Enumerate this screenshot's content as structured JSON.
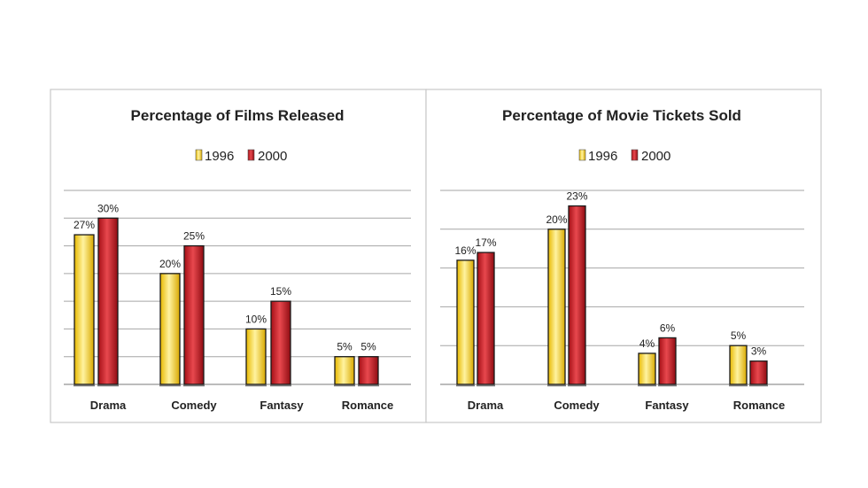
{
  "chart_data": [
    {
      "type": "bar",
      "title": "Percentage of Films Released",
      "categories": [
        "Drama",
        "Comedy",
        "Fantasy",
        "Romance"
      ],
      "series": [
        {
          "name": "1996",
          "values": [
            27,
            20,
            10,
            5
          ],
          "labels": [
            "27%",
            "20%",
            "10%",
            "5%"
          ]
        },
        {
          "name": "2000",
          "values": [
            30,
            25,
            15,
            5
          ],
          "labels": [
            "30%",
            "25%",
            "15%",
            "5%"
          ]
        }
      ],
      "ylim": [
        0,
        35
      ],
      "legend": "top-center",
      "grid": true
    },
    {
      "type": "bar",
      "title": "Percentage of Movie Tickets Sold",
      "categories": [
        "Drama",
        "Comedy",
        "Fantasy",
        "Romance"
      ],
      "series": [
        {
          "name": "1996",
          "values": [
            16,
            20,
            4,
            5
          ],
          "labels": [
            "16%",
            "20%",
            "4%",
            "5%"
          ]
        },
        {
          "name": "2000",
          "values": [
            17,
            23,
            6,
            3
          ],
          "labels": [
            "17%",
            "23%",
            "6%",
            "3%"
          ]
        }
      ],
      "ylim": [
        0,
        25
      ],
      "legend": "top-center",
      "grid": true
    }
  ],
  "colors": {
    "series_1996": "#f2cf12",
    "series_1996_light": "#fff3a0",
    "series_2000": "#c0141c",
    "series_2000_light": "#f06060",
    "gridline": "#a6a6a6",
    "frame": "#c8c8c8"
  }
}
